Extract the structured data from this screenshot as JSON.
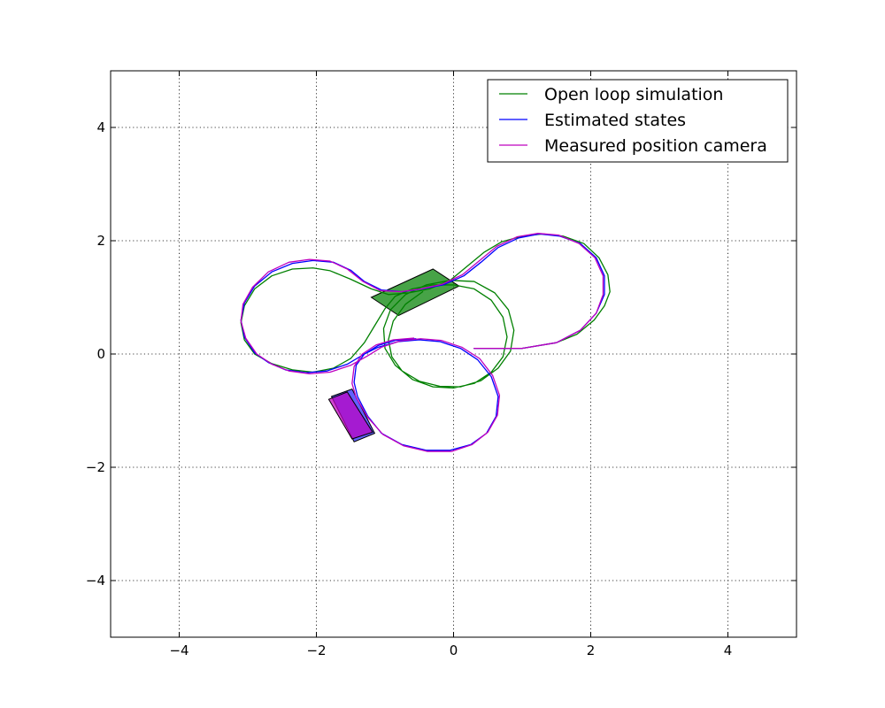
{
  "chart_data": {
    "type": "line",
    "title": "",
    "xlabel": "",
    "ylabel": "",
    "xlim": [
      -5,
      5
    ],
    "ylim": [
      -5,
      5
    ],
    "xticks": [
      -4,
      -2,
      0,
      2,
      4
    ],
    "yticks": [
      -4,
      -2,
      0,
      2,
      4
    ],
    "xtick_labels": [
      "−4",
      "−2",
      "0",
      "2",
      "4"
    ],
    "ytick_labels": [
      "−4",
      "−2",
      "0",
      "2",
      "4"
    ],
    "grid": true,
    "legend": {
      "placement": "top-right"
    },
    "series": [
      {
        "name": "Open loop simulation",
        "color": "#008000",
        "points": [
          [
            0.3,
            0.1
          ],
          [
            1.0,
            0.1
          ],
          [
            1.5,
            0.2
          ],
          [
            1.8,
            0.35
          ],
          [
            2.05,
            0.6
          ],
          [
            2.2,
            0.85
          ],
          [
            2.28,
            1.1
          ],
          [
            2.25,
            1.4
          ],
          [
            2.12,
            1.7
          ],
          [
            1.9,
            1.95
          ],
          [
            1.6,
            2.08
          ],
          [
            1.3,
            2.12
          ],
          [
            1.0,
            2.08
          ],
          [
            0.7,
            1.98
          ],
          [
            0.45,
            1.8
          ],
          [
            0.2,
            1.55
          ],
          [
            -0.05,
            1.3
          ],
          [
            -0.35,
            1.15
          ],
          [
            -0.65,
            1.08
          ],
          [
            -0.95,
            1.05
          ],
          [
            -1.2,
            1.15
          ],
          [
            -1.5,
            1.32
          ],
          [
            -1.8,
            1.47
          ],
          [
            -2.05,
            1.52
          ],
          [
            -2.35,
            1.5
          ],
          [
            -2.65,
            1.38
          ],
          [
            -2.9,
            1.15
          ],
          [
            -3.05,
            0.85
          ],
          [
            -3.1,
            0.55
          ],
          [
            -3.05,
            0.25
          ],
          [
            -2.9,
            0.0
          ],
          [
            -2.65,
            -0.17
          ],
          [
            -2.35,
            -0.28
          ],
          [
            -2.05,
            -0.32
          ],
          [
            -1.75,
            -0.25
          ],
          [
            -1.5,
            -0.08
          ],
          [
            -1.3,
            0.2
          ],
          [
            -1.15,
            0.5
          ],
          [
            -1.0,
            0.8
          ],
          [
            -0.85,
            1.02
          ],
          [
            -0.6,
            1.15
          ],
          [
            -0.3,
            1.22
          ],
          [
            0.0,
            1.22
          ],
          [
            0.3,
            1.15
          ],
          [
            0.55,
            0.95
          ],
          [
            0.72,
            0.65
          ],
          [
            0.78,
            0.3
          ],
          [
            0.72,
            -0.05
          ],
          [
            0.55,
            -0.32
          ],
          [
            0.3,
            -0.52
          ],
          [
            0.0,
            -0.6
          ],
          [
            -0.3,
            -0.58
          ],
          [
            -0.6,
            -0.45
          ],
          [
            -0.85,
            -0.2
          ],
          [
            -1.0,
            0.1
          ],
          [
            -1.02,
            0.45
          ],
          [
            -0.92,
            0.78
          ],
          [
            -0.7,
            1.05
          ],
          [
            -0.4,
            1.22
          ],
          [
            -0.05,
            1.3
          ],
          [
            0.3,
            1.28
          ],
          [
            0.6,
            1.08
          ],
          [
            0.8,
            0.78
          ],
          [
            0.88,
            0.42
          ],
          [
            0.83,
            0.05
          ],
          [
            0.65,
            -0.25
          ],
          [
            0.4,
            -0.47
          ],
          [
            0.1,
            -0.58
          ],
          [
            -0.2,
            -0.57
          ],
          [
            -0.5,
            -0.48
          ],
          [
            -0.75,
            -0.3
          ],
          [
            -0.9,
            -0.05
          ],
          [
            -0.95,
            0.25
          ],
          [
            -0.88,
            0.58
          ],
          [
            -0.7,
            0.88
          ],
          [
            -0.45,
            1.1
          ]
        ]
      },
      {
        "name": "Estimated states",
        "color": "#0000ff",
        "points": [
          [
            0.3,
            0.1
          ],
          [
            1.0,
            0.1
          ],
          [
            1.5,
            0.2
          ],
          [
            1.85,
            0.42
          ],
          [
            2.08,
            0.72
          ],
          [
            2.2,
            1.05
          ],
          [
            2.2,
            1.38
          ],
          [
            2.08,
            1.7
          ],
          [
            1.85,
            1.95
          ],
          [
            1.55,
            2.08
          ],
          [
            1.25,
            2.12
          ],
          [
            0.95,
            2.05
          ],
          [
            0.65,
            1.88
          ],
          [
            0.4,
            1.62
          ],
          [
            0.15,
            1.38
          ],
          [
            -0.15,
            1.22
          ],
          [
            -0.45,
            1.15
          ],
          [
            -0.75,
            1.1
          ],
          [
            -1.05,
            1.13
          ],
          [
            -1.3,
            1.28
          ],
          [
            -1.5,
            1.48
          ],
          [
            -1.75,
            1.62
          ],
          [
            -2.05,
            1.65
          ],
          [
            -2.35,
            1.6
          ],
          [
            -2.65,
            1.45
          ],
          [
            -2.9,
            1.2
          ],
          [
            -3.05,
            0.9
          ],
          [
            -3.1,
            0.6
          ],
          [
            -3.05,
            0.3
          ],
          [
            -2.9,
            0.02
          ],
          [
            -2.7,
            -0.15
          ],
          [
            -2.45,
            -0.28
          ],
          [
            -2.15,
            -0.33
          ],
          [
            -1.85,
            -0.3
          ],
          [
            -1.55,
            -0.18
          ],
          [
            -1.3,
            0.0
          ],
          [
            -1.1,
            0.12
          ],
          [
            -0.8,
            0.22
          ],
          [
            -0.5,
            0.25
          ],
          [
            -0.2,
            0.22
          ],
          [
            0.1,
            0.1
          ],
          [
            0.35,
            -0.1
          ],
          [
            0.55,
            -0.4
          ],
          [
            0.65,
            -0.75
          ],
          [
            0.62,
            -1.1
          ],
          [
            0.48,
            -1.4
          ],
          [
            0.25,
            -1.6
          ],
          [
            -0.05,
            -1.7
          ],
          [
            -0.4,
            -1.7
          ],
          [
            -0.75,
            -1.6
          ],
          [
            -1.05,
            -1.4
          ],
          [
            -1.25,
            -1.1
          ],
          [
            -1.4,
            -0.75
          ],
          [
            -1.45,
            -0.5
          ],
          [
            -1.42,
            -0.2
          ],
          [
            -1.3,
            0.0
          ],
          [
            -1.1,
            0.15
          ],
          [
            -0.85,
            0.24
          ],
          [
            -0.55,
            0.27
          ]
        ]
      },
      {
        "name": "Measured position camera",
        "color": "#bf00bf",
        "points": [
          [
            0.3,
            0.1
          ],
          [
            1.0,
            0.1
          ],
          [
            1.5,
            0.2
          ],
          [
            1.85,
            0.42
          ],
          [
            2.08,
            0.72
          ],
          [
            2.18,
            1.05
          ],
          [
            2.18,
            1.38
          ],
          [
            2.06,
            1.7
          ],
          [
            1.83,
            1.95
          ],
          [
            1.53,
            2.1
          ],
          [
            1.23,
            2.13
          ],
          [
            0.93,
            2.07
          ],
          [
            0.63,
            1.9
          ],
          [
            0.38,
            1.65
          ],
          [
            0.13,
            1.4
          ],
          [
            -0.17,
            1.23
          ],
          [
            -0.47,
            1.15
          ],
          [
            -0.77,
            1.1
          ],
          [
            -1.07,
            1.12
          ],
          [
            -1.32,
            1.28
          ],
          [
            -1.55,
            1.5
          ],
          [
            -1.8,
            1.64
          ],
          [
            -2.1,
            1.67
          ],
          [
            -2.4,
            1.62
          ],
          [
            -2.7,
            1.45
          ],
          [
            -2.93,
            1.18
          ],
          [
            -3.07,
            0.88
          ],
          [
            -3.1,
            0.58
          ],
          [
            -3.03,
            0.28
          ],
          [
            -2.87,
            0.0
          ],
          [
            -2.65,
            -0.18
          ],
          [
            -2.4,
            -0.3
          ],
          [
            -2.1,
            -0.35
          ],
          [
            -1.8,
            -0.32
          ],
          [
            -1.5,
            -0.2
          ],
          [
            -1.25,
            -0.03
          ],
          [
            -1.05,
            0.12
          ],
          [
            -0.78,
            0.23
          ],
          [
            -0.48,
            0.27
          ],
          [
            -0.18,
            0.24
          ],
          [
            0.12,
            0.12
          ],
          [
            0.38,
            -0.08
          ],
          [
            0.57,
            -0.38
          ],
          [
            0.67,
            -0.73
          ],
          [
            0.64,
            -1.08
          ],
          [
            0.5,
            -1.38
          ],
          [
            0.27,
            -1.6
          ],
          [
            -0.03,
            -1.72
          ],
          [
            -0.38,
            -1.72
          ],
          [
            -0.73,
            -1.62
          ],
          [
            -1.03,
            -1.42
          ],
          [
            -1.25,
            -1.12
          ],
          [
            -1.42,
            -0.77
          ],
          [
            -1.48,
            -0.52
          ],
          [
            -1.45,
            -0.22
          ],
          [
            -1.33,
            0.0
          ],
          [
            -1.13,
            0.16
          ],
          [
            -0.88,
            0.25
          ],
          [
            -0.58,
            0.28
          ]
        ]
      }
    ],
    "shapes": [
      {
        "name": "open-loop-vehicle",
        "color": "#008000",
        "opacity": 0.72,
        "points": [
          [
            -0.8,
            0.68
          ],
          [
            -1.2,
            1.0
          ],
          [
            -0.3,
            1.5
          ],
          [
            0.08,
            1.2
          ]
        ]
      },
      {
        "name": "estimated-vehicle",
        "color": "#0000ff",
        "opacity": 0.62,
        "points": [
          [
            -1.78,
            -0.75
          ],
          [
            -1.48,
            -0.62
          ],
          [
            -1.15,
            -1.4
          ],
          [
            -1.45,
            -1.55
          ]
        ]
      },
      {
        "name": "measured-vehicle",
        "color": "#bf00bf",
        "opacity": 0.72,
        "points": [
          [
            -1.82,
            -0.8
          ],
          [
            -1.55,
            -0.67
          ],
          [
            -1.18,
            -1.38
          ],
          [
            -1.48,
            -1.5
          ]
        ]
      }
    ]
  }
}
